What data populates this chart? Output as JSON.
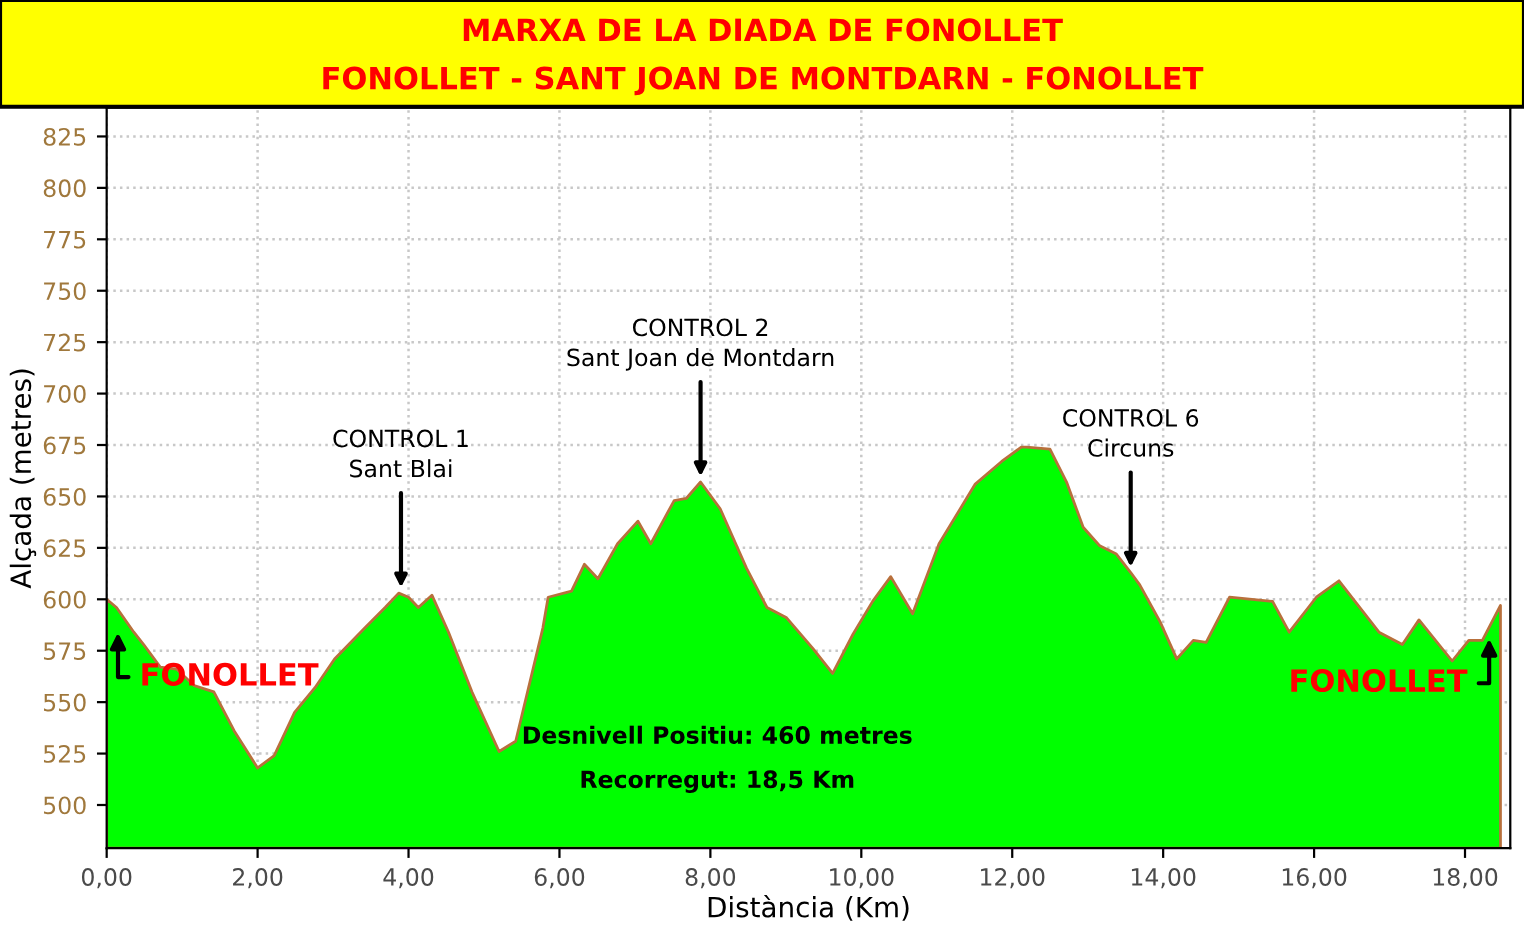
{
  "chart_data": {
    "type": "area",
    "title": "MARXA DE LA DIADA DE FONOLLET",
    "subtitle": "FONOLLET - SANT JOAN DE MONTDARN - FONOLLET",
    "xlabel": "Distància (Km)",
    "ylabel": "Alçada (metres)",
    "x": [
      0,
      0.13,
      0.36,
      0.49,
      0.71,
      0.93,
      1.16,
      1.42,
      1.69,
      2.0,
      2.22,
      2.49,
      2.76,
      3.02,
      3.42,
      3.69,
      3.87,
      4.0,
      4.13,
      4.31,
      4.53,
      4.84,
      5.2,
      5.42,
      5.78,
      5.85,
      6.16,
      6.33,
      6.51,
      6.77,
      7.04,
      7.21,
      7.52,
      7.68,
      7.87,
      8.13,
      8.48,
      8.75,
      9.01,
      9.36,
      9.62,
      9.89,
      10.15,
      10.39,
      10.68,
      11.03,
      11.51,
      11.86,
      12.12,
      12.19,
      12.5,
      12.72,
      12.94,
      13.16,
      13.38,
      13.57,
      13.69,
      13.96,
      14.18,
      14.4,
      14.57,
      14.88,
      15.45,
      15.67,
      16.03,
      16.33,
      16.86,
      17.17,
      17.39,
      17.83,
      18.05,
      18.23,
      18.47
    ],
    "series": [
      {
        "color": "#00ff00",
        "values": [
          600,
          596,
          584,
          578,
          567,
          566,
          558,
          555,
          536,
          518,
          524,
          545,
          557,
          571,
          586,
          596,
          603,
          601,
          596,
          602,
          584,
          555,
          526,
          531,
          586,
          601,
          604,
          617,
          610,
          627,
          638,
          627,
          648,
          649,
          657,
          644,
          615,
          596,
          591,
          576,
          564,
          583,
          599,
          611,
          593,
          627,
          656,
          667,
          674,
          674,
          673,
          657,
          635,
          626,
          622,
          613,
          607,
          589,
          571,
          580,
          579,
          601,
          599,
          584,
          601,
          609,
          584,
          578,
          590,
          570,
          580,
          580,
          597
        ]
      }
    ],
    "xlim": [
      0,
      18.6
    ],
    "ylim": [
      479,
      839
    ],
    "xticks": [
      {
        "value": 0,
        "label": "0,00"
      },
      {
        "value": 2,
        "label": "2,00"
      },
      {
        "value": 4,
        "label": "4,00"
      },
      {
        "value": 6,
        "label": "6,00"
      },
      {
        "value": 8,
        "label": "8,00"
      },
      {
        "value": 10,
        "label": "10,00"
      },
      {
        "value": 12,
        "label": "12,00"
      },
      {
        "value": 14,
        "label": "14,00"
      },
      {
        "value": 16,
        "label": "16,00"
      },
      {
        "value": 18,
        "label": "18,00"
      }
    ],
    "yticks": [
      500,
      525,
      550,
      575,
      600,
      625,
      650,
      675,
      700,
      725,
      750,
      775,
      800,
      825
    ],
    "grid": true,
    "annotations": [
      {
        "text": "CONTROL 1\nSant Blai",
        "x": 3.9,
        "y": 603
      },
      {
        "text": "CONTROL 2\nSant Joan de Montdarn",
        "x": 7.87,
        "y": 657
      },
      {
        "text": "CONTROL 6\nCircuns",
        "x": 13.57,
        "y": 613
      },
      {
        "text": "FONOLLET",
        "x": 0,
        "y": 600
      },
      {
        "text": "FONOLLET",
        "x": 18.47,
        "y": 597
      },
      "Desnivell Positiu: 460 metres",
      "Recorregut: 18,5 Km"
    ]
  }
}
